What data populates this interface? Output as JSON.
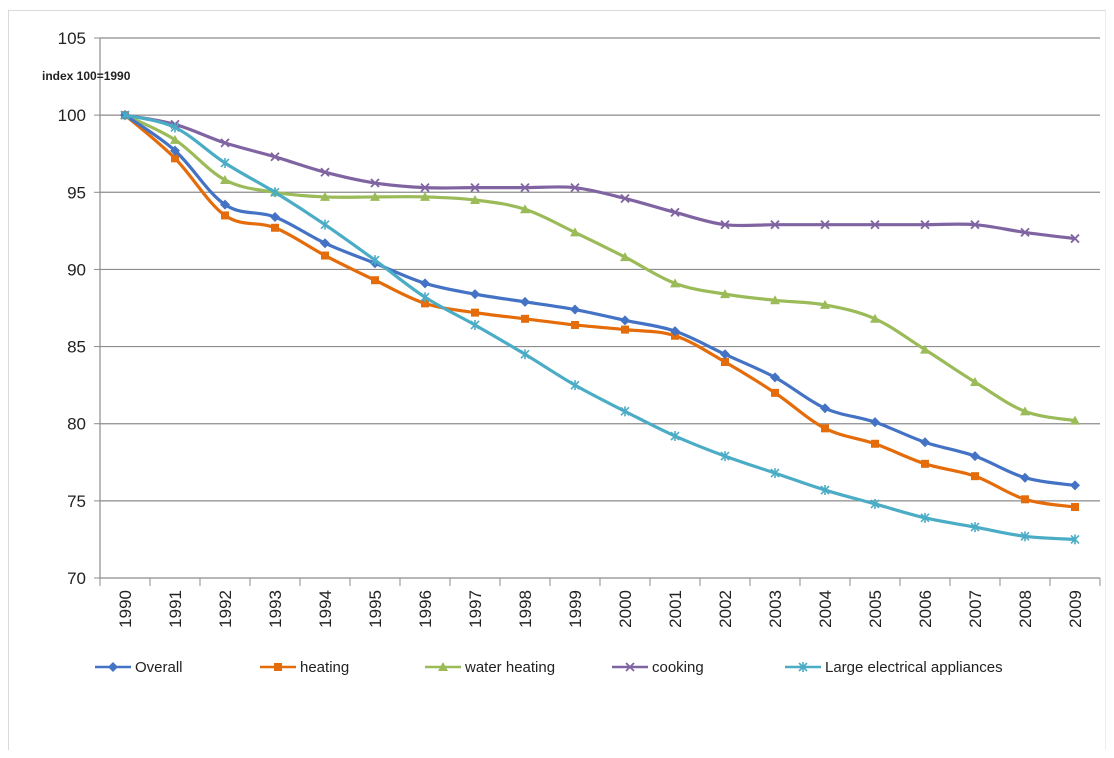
{
  "chart_data": {
    "type": "line",
    "title": "",
    "xlabel": "",
    "ylabel": "",
    "unit_label": "index 100=1990",
    "ylim": [
      70,
      105
    ],
    "yticks": [
      70,
      75,
      80,
      85,
      90,
      95,
      100,
      105
    ],
    "grid": true,
    "legend_position": "bottom",
    "categories": [
      "1990",
      "1991",
      "1992",
      "1993",
      "1994",
      "1995",
      "1996",
      "1997",
      "1998",
      "1999",
      "2000",
      "2001",
      "2002",
      "2003",
      "2004",
      "2005",
      "2006",
      "2007",
      "2008",
      "2009"
    ],
    "series": [
      {
        "name": "Overall",
        "color": "#4472c4",
        "marker": "diamond",
        "values": [
          100,
          97.7,
          94.2,
          93.4,
          91.7,
          90.4,
          89.1,
          88.4,
          87.9,
          87.4,
          86.7,
          86.0,
          84.5,
          83.0,
          81.0,
          80.1,
          78.8,
          77.9,
          76.5,
          76.0
        ]
      },
      {
        "name": "heating",
        "color": "#e46c0a",
        "marker": "square",
        "values": [
          100,
          97.2,
          93.5,
          92.7,
          90.9,
          89.3,
          87.8,
          87.2,
          86.8,
          86.4,
          86.1,
          85.7,
          84.0,
          82.0,
          79.7,
          78.7,
          77.4,
          76.6,
          75.1,
          74.6
        ]
      },
      {
        "name": "water heating",
        "color": "#9bbb59",
        "marker": "triangle",
        "values": [
          100,
          98.4,
          95.8,
          95.0,
          94.7,
          94.7,
          94.7,
          94.5,
          93.9,
          92.4,
          90.8,
          89.1,
          88.4,
          88.0,
          87.7,
          86.8,
          84.8,
          82.7,
          80.8,
          80.2
        ]
      },
      {
        "name": "cooking",
        "color": "#8064a2",
        "marker": "x",
        "values": [
          100,
          99.4,
          98.2,
          97.3,
          96.3,
          95.6,
          95.3,
          95.3,
          95.3,
          95.3,
          94.6,
          93.7,
          92.9,
          92.9,
          92.9,
          92.9,
          92.9,
          92.9,
          92.4,
          92.0
        ]
      },
      {
        "name": "Large electrical appliances",
        "color": "#4bacc6",
        "marker": "star",
        "values": [
          100,
          99.2,
          96.9,
          95.0,
          92.9,
          90.6,
          88.2,
          86.4,
          84.5,
          82.5,
          80.8,
          79.2,
          77.9,
          76.8,
          75.7,
          74.8,
          73.9,
          73.3,
          72.7,
          72.5
        ]
      }
    ]
  }
}
